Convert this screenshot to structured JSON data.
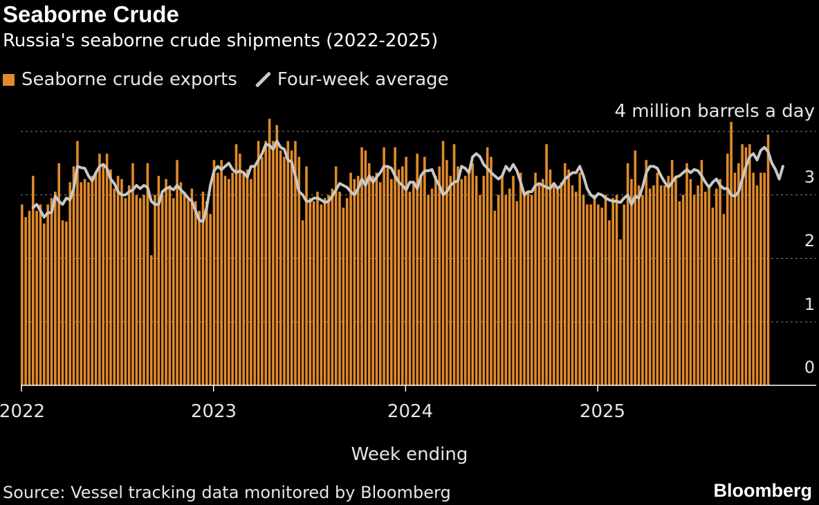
{
  "title": "Seaborne Crude",
  "subtitle": "Russia's seaborne crude shipments (2022-2025)",
  "legend": {
    "bars_label": "Seaborne crude exports",
    "line_label": "Four-week average"
  },
  "colors": {
    "bar": "#e08a2b",
    "line": "#c8c8c8",
    "grid": "#8a8a8a",
    "axis": "#ffffff"
  },
  "source": "Source: Vessel tracking data monitored by Bloomberg",
  "brand": "Bloomberg",
  "chart_data": {
    "type": "bar",
    "title": "Seaborne Crude",
    "subtitle": "Russia's seaborne crude shipments (2022-2025)",
    "xlabel": "Week ending",
    "ylabel": "million barrels a day",
    "unit_label": "4 million barrels a day",
    "ylim": [
      0,
      4
    ],
    "yticks": [
      "0",
      "1",
      "2",
      "3"
    ],
    "xticks": [
      {
        "label": "2022",
        "week": 0
      },
      {
        "label": "2023",
        "week": 52
      },
      {
        "label": "2024",
        "week": 104
      },
      {
        "label": "2025",
        "week": 156
      }
    ],
    "x_unit": "weeks since first week of 2022",
    "grid": true,
    "legend_position": "top-left",
    "series": [
      {
        "name": "Seaborne crude exports",
        "kind": "bar",
        "values": [
          2.85,
          2.65,
          2.75,
          3.3,
          2.75,
          2.85,
          2.55,
          2.85,
          2.95,
          3.05,
          3.5,
          2.6,
          2.58,
          3.2,
          3.45,
          3.85,
          3.2,
          3.25,
          3.2,
          3.3,
          3.35,
          3.65,
          3.5,
          3.65,
          3.4,
          3.1,
          3.3,
          3.25,
          2.95,
          3.15,
          3.5,
          3.0,
          2.95,
          3.0,
          3.5,
          2.05,
          3.0,
          3.3,
          3.0,
          3.25,
          3.15,
          2.95,
          3.55,
          3.2,
          3.05,
          2.95,
          3.1,
          2.9,
          2.75,
          3.05,
          2.9,
          2.7,
          3.55,
          3.35,
          3.55,
          3.3,
          3.25,
          3.35,
          3.8,
          3.65,
          3.35,
          3.4,
          3.25,
          3.45,
          3.85,
          3.6,
          3.85,
          4.2,
          3.85,
          4.1,
          3.7,
          3.6,
          3.85,
          3.7,
          3.85,
          3.6,
          2.6,
          3.45,
          2.95,
          2.9,
          3.05,
          2.85,
          2.95,
          3.0,
          3.1,
          3.45,
          3.05,
          2.8,
          2.95,
          3.35,
          3.25,
          3.3,
          3.75,
          3.7,
          3.5,
          3.3,
          3.35,
          3.2,
          3.75,
          3.45,
          3.25,
          3.75,
          3.4,
          3.45,
          3.6,
          3.05,
          3.2,
          3.65,
          3.3,
          3.6,
          3.0,
          3.1,
          3.3,
          3.45,
          3.85,
          3.55,
          3.3,
          3.8,
          3.45,
          3.25,
          3.3,
          3.35,
          3.5,
          3.3,
          3.0,
          3.3,
          3.75,
          3.6,
          2.75,
          3.0,
          3.3,
          3.0,
          3.1,
          3.3,
          2.9,
          3.35,
          3.05,
          3.05,
          3.0,
          3.35,
          3.15,
          3.25,
          3.8,
          3.4,
          3.15,
          3.1,
          3.2,
          3.5,
          3.4,
          3.15,
          3.05,
          3.35,
          3.0,
          2.85,
          2.85,
          3.0,
          2.85,
          2.8,
          3.0,
          2.6,
          2.95,
          3.0,
          2.3,
          2.85,
          3.5,
          3.25,
          3.7,
          3.15,
          3.0,
          3.55,
          3.1,
          3.15,
          3.35,
          3.15,
          3.15,
          3.3,
          3.55,
          3.3,
          2.9,
          3.0,
          3.5,
          3.25,
          3.0,
          3.15,
          3.55,
          3.05,
          3.15,
          2.8,
          3.1,
          3.25,
          2.7,
          3.65,
          4.15,
          3.35,
          3.5,
          3.8,
          3.75,
          3.8,
          3.35,
          3.15,
          3.35,
          3.35,
          3.95
        ]
      },
      {
        "name": "Four-week average",
        "kind": "line",
        "start_week": 3,
        "values": [
          2.8,
          2.85,
          2.75,
          2.65,
          2.72,
          2.72,
          2.98,
          2.9,
          2.85,
          2.95,
          2.92,
          3.1,
          3.45,
          3.43,
          3.42,
          3.3,
          3.22,
          3.35,
          3.45,
          3.48,
          3.42,
          3.25,
          3.18,
          3.05,
          3.0,
          3.0,
          3.05,
          3.08,
          3.15,
          3.1,
          3.15,
          3.12,
          2.9,
          2.85,
          2.85,
          3.05,
          3.1,
          3.12,
          3.08,
          3.15,
          3.08,
          3.02,
          2.95,
          2.9,
          2.75,
          2.6,
          2.58,
          2.8,
          3.15,
          3.38,
          3.45,
          3.4,
          3.45,
          3.5,
          3.4,
          3.35,
          3.38,
          3.35,
          3.28,
          3.45,
          3.45,
          3.55,
          3.65,
          3.8,
          3.78,
          3.72,
          3.85,
          3.75,
          3.72,
          3.55,
          3.52,
          3.3,
          3.05,
          3.0,
          2.9,
          2.9,
          2.95,
          2.95,
          2.92,
          2.88,
          2.9,
          2.98,
          3.08,
          3.18,
          3.15,
          3.12,
          3.05,
          3.0,
          3.1,
          3.25,
          3.15,
          3.3,
          3.2,
          3.28,
          3.35,
          3.45,
          3.45,
          3.42,
          3.3,
          3.2,
          3.15,
          3.08,
          3.2,
          3.2,
          3.1,
          3.3,
          3.38,
          3.38,
          3.4,
          3.25,
          3.15,
          3.0,
          3.05,
          3.15,
          3.2,
          3.22,
          3.45,
          3.42,
          3.35,
          3.6,
          3.65,
          3.6,
          3.48,
          3.42,
          3.35,
          3.3,
          3.25,
          3.3,
          3.45,
          3.38,
          3.48,
          3.38,
          3.2,
          3.0,
          3.05,
          3.05,
          3.15,
          3.18,
          3.15,
          3.12,
          3.1,
          3.18,
          3.1,
          3.15,
          3.25,
          3.3,
          3.35,
          3.35,
          3.45,
          3.3,
          3.1,
          3.0,
          2.95,
          3.02,
          3.0,
          2.95,
          2.92,
          2.9,
          2.9,
          2.88,
          2.95,
          3.0,
          2.85,
          2.98,
          2.95,
          3.12,
          3.35,
          3.45,
          3.45,
          3.42,
          3.3,
          3.2,
          3.12,
          3.2,
          3.28,
          3.3,
          3.35,
          3.4,
          3.35,
          3.4,
          3.38,
          3.3,
          3.2,
          3.12,
          3.2,
          3.25,
          3.15,
          3.1,
          3.1,
          3.0,
          2.98,
          3.05,
          3.25,
          3.45,
          3.6,
          3.65,
          3.55,
          3.7,
          3.75,
          3.68,
          3.5,
          3.4,
          3.25,
          3.45
        ]
      }
    ]
  }
}
